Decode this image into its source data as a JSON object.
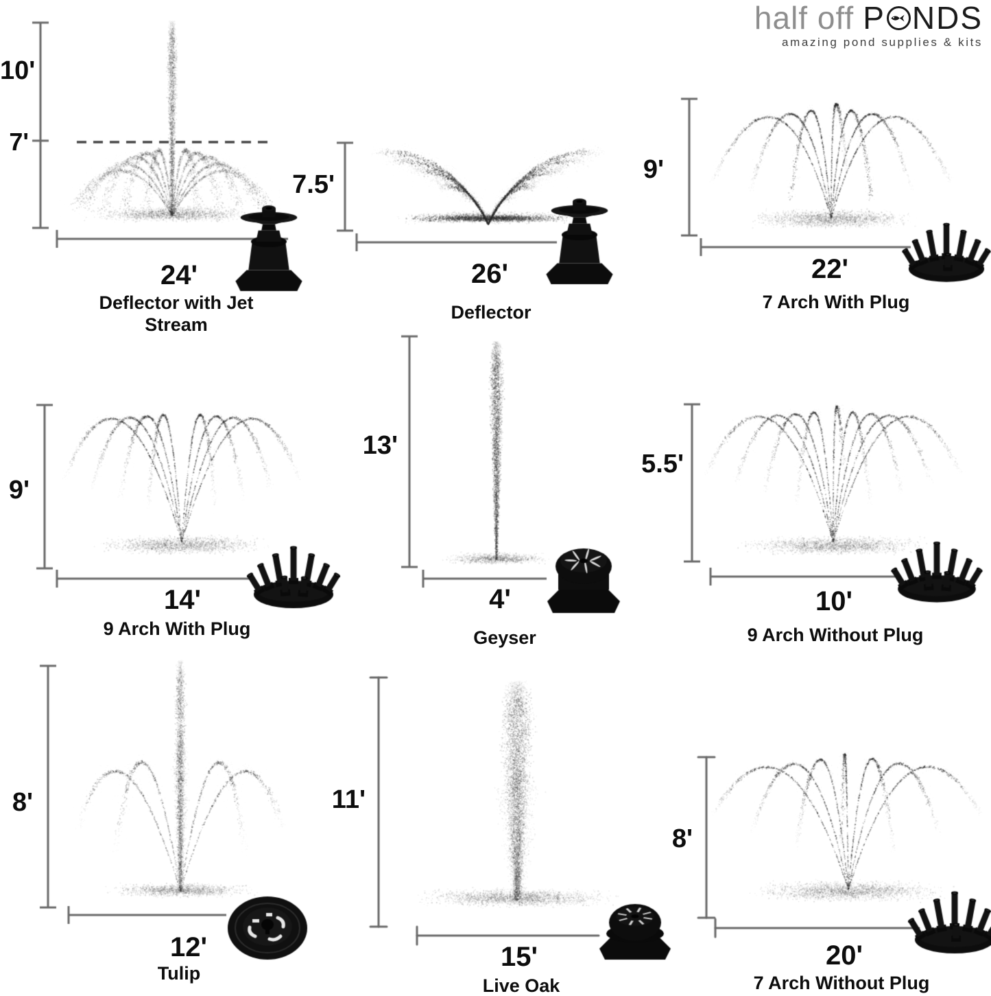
{
  "logo": {
    "prefix": "half off",
    "brand_p": "P",
    "brand_rest": "NDS",
    "tagline": "amazing pond supplies & kits"
  },
  "panels": [
    {
      "name": "Deflector with Jet Stream",
      "spray_pattern": "deflector-with-jet-stream",
      "max_height": "10'",
      "secondary_height": "7'",
      "spray_width": "24'"
    },
    {
      "name": "Deflector",
      "spray_pattern": "deflector",
      "max_height": "7.5'",
      "spray_width": "26'"
    },
    {
      "name": "7 Arch With Plug",
      "spray_pattern": "7-arch-with-plug",
      "max_height": "9'",
      "spray_width": "22'"
    },
    {
      "name": "9 Arch With Plug",
      "spray_pattern": "9-arch-with-plug",
      "max_height": "9'",
      "spray_width": "14'"
    },
    {
      "name": "Geyser",
      "spray_pattern": "geyser",
      "max_height": "13'",
      "spray_width": "4'"
    },
    {
      "name": "9 Arch Without Plug",
      "spray_pattern": "9-arch-without-plug",
      "max_height": "5.5'",
      "spray_width": "10'"
    },
    {
      "name": "Tulip",
      "spray_pattern": "tulip",
      "max_height": "8'",
      "spray_width": "12'"
    },
    {
      "name": "Live Oak",
      "spray_pattern": "live-oak",
      "max_height": "11'",
      "spray_width": "15'"
    },
    {
      "name": "7 Arch Without Plug",
      "spray_pattern": "7-arch-without-plug",
      "max_height": "8'",
      "spray_width": "20'"
    }
  ]
}
